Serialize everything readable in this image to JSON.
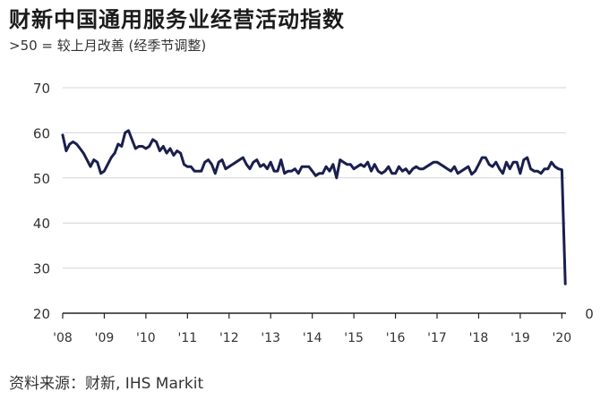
{
  "header": {
    "title": "财新中国通用服务业经营活动指数",
    "subtitle": ">50 = 较上月改善 (经季节调整)"
  },
  "footer": {
    "source": "资料来源：财新, IHS Markit"
  },
  "chart_data": {
    "type": "line",
    "title": "财新中国通用服务业经营活动指数",
    "subtitle": ">50 = 较上月改善 (经季节调整)",
    "xlabel": "",
    "ylabel": "",
    "ylim": [
      20,
      70
    ],
    "yticks": [
      20,
      30,
      40,
      50,
      60,
      70
    ],
    "xlim": [
      2008,
      2020.1
    ],
    "xticks": [
      {
        "value": 2008,
        "label": "'08"
      },
      {
        "value": 2009,
        "label": "'09"
      },
      {
        "value": 2010,
        "label": "'10"
      },
      {
        "value": 2011,
        "label": "'11"
      },
      {
        "value": 2012,
        "label": "'12"
      },
      {
        "value": 2013,
        "label": "'13"
      },
      {
        "value": 2014,
        "label": "'14"
      },
      {
        "value": 2015,
        "label": "'15"
      },
      {
        "value": 2016,
        "label": "'16"
      },
      {
        "value": 2017,
        "label": "'17"
      },
      {
        "value": 2018,
        "label": "'18"
      },
      {
        "value": 2019,
        "label": "'19"
      },
      {
        "value": 2020,
        "label": "'20"
      }
    ],
    "right_axis_label": "0",
    "grid": true,
    "line_color": "#1a1f4d",
    "series": [
      {
        "x": [
          2008.0,
          2008.083,
          2008.167,
          2008.25,
          2008.333,
          2008.417,
          2008.5,
          2008.583,
          2008.667,
          2008.75,
          2008.833,
          2008.917,
          2009.0,
          2009.083,
          2009.167,
          2009.25,
          2009.333,
          2009.417,
          2009.5,
          2009.583,
          2009.667,
          2009.75,
          2009.833,
          2009.917,
          2010.0,
          2010.083,
          2010.167,
          2010.25,
          2010.333,
          2010.417,
          2010.5,
          2010.583,
          2010.667,
          2010.75,
          2010.833,
          2010.917,
          2011.0,
          2011.083,
          2011.167,
          2011.25,
          2011.333,
          2011.417,
          2011.5,
          2011.583,
          2011.667,
          2011.75,
          2011.833,
          2011.917,
          2012.0,
          2012.083,
          2012.167,
          2012.25,
          2012.333,
          2012.417,
          2012.5,
          2012.583,
          2012.667,
          2012.75,
          2012.833,
          2012.917,
          2013.0,
          2013.083,
          2013.167,
          2013.25,
          2013.333,
          2013.417,
          2013.5,
          2013.583,
          2013.667,
          2013.75,
          2013.833,
          2013.917,
          2014.0,
          2014.083,
          2014.167,
          2014.25,
          2014.333,
          2014.417,
          2014.5,
          2014.583,
          2014.667,
          2014.75,
          2014.833,
          2014.917,
          2015.0,
          2015.083,
          2015.167,
          2015.25,
          2015.333,
          2015.417,
          2015.5,
          2015.583,
          2015.667,
          2015.75,
          2015.833,
          2015.917,
          2016.0,
          2016.083,
          2016.167,
          2016.25,
          2016.333,
          2016.417,
          2016.5,
          2016.583,
          2016.667,
          2016.75,
          2016.833,
          2016.917,
          2017.0,
          2017.083,
          2017.167,
          2017.25,
          2017.333,
          2017.417,
          2017.5,
          2017.583,
          2017.667,
          2017.75,
          2017.833,
          2017.917,
          2018.0,
          2018.083,
          2018.167,
          2018.25,
          2018.333,
          2018.417,
          2018.5,
          2018.583,
          2018.667,
          2018.75,
          2018.833,
          2018.917,
          2019.0,
          2019.083,
          2019.167,
          2019.25,
          2019.333,
          2019.417,
          2019.5,
          2019.583,
          2019.667,
          2019.75,
          2019.833,
          2019.917,
          2020.0,
          2020.083
        ],
        "values": [
          59.5,
          56.0,
          57.5,
          58.0,
          57.5,
          56.5,
          55.5,
          54.0,
          52.5,
          54.0,
          53.5,
          51.0,
          51.5,
          53.0,
          54.5,
          55.5,
          57.5,
          57.0,
          60.0,
          60.5,
          58.5,
          56.5,
          57.0,
          57.0,
          56.5,
          57.0,
          58.5,
          58.0,
          56.0,
          57.0,
          55.5,
          56.5,
          55.0,
          56.0,
          55.5,
          53.0,
          52.5,
          52.5,
          51.5,
          51.5,
          51.5,
          53.5,
          54.0,
          53.0,
          51.0,
          53.5,
          54.0,
          52.0,
          52.5,
          53.0,
          53.5,
          54.0,
          54.5,
          53.0,
          52.0,
          53.5,
          54.0,
          52.5,
          53.0,
          52.0,
          53.5,
          51.5,
          51.5,
          54.0,
          51.0,
          51.5,
          51.5,
          52.0,
          51.0,
          52.5,
          52.5,
          52.5,
          51.5,
          50.5,
          51.0,
          51.0,
          52.5,
          51.5,
          53.0,
          50.0,
          54.0,
          53.5,
          53.0,
          53.0,
          52.0,
          52.5,
          53.0,
          52.5,
          53.5,
          51.5,
          53.0,
          51.5,
          51.0,
          51.5,
          52.5,
          51.0,
          51.0,
          52.5,
          51.5,
          52.0,
          51.0,
          52.0,
          52.5,
          52.0,
          52.0,
          52.5,
          53.0,
          53.5,
          53.5,
          53.0,
          52.5,
          52.0,
          51.5,
          52.5,
          51.0,
          51.5,
          52.0,
          52.5,
          50.8,
          51.5,
          53.0,
          54.5,
          54.5,
          53.0,
          52.5,
          53.5,
          52.0,
          51.0,
          53.5,
          52.0,
          53.5,
          53.5,
          51.0,
          54.0,
          54.5,
          52.0,
          51.5,
          51.5,
          51.0,
          52.0,
          52.0,
          53.5,
          52.5,
          52.0,
          51.8,
          26.5
        ]
      }
    ]
  }
}
